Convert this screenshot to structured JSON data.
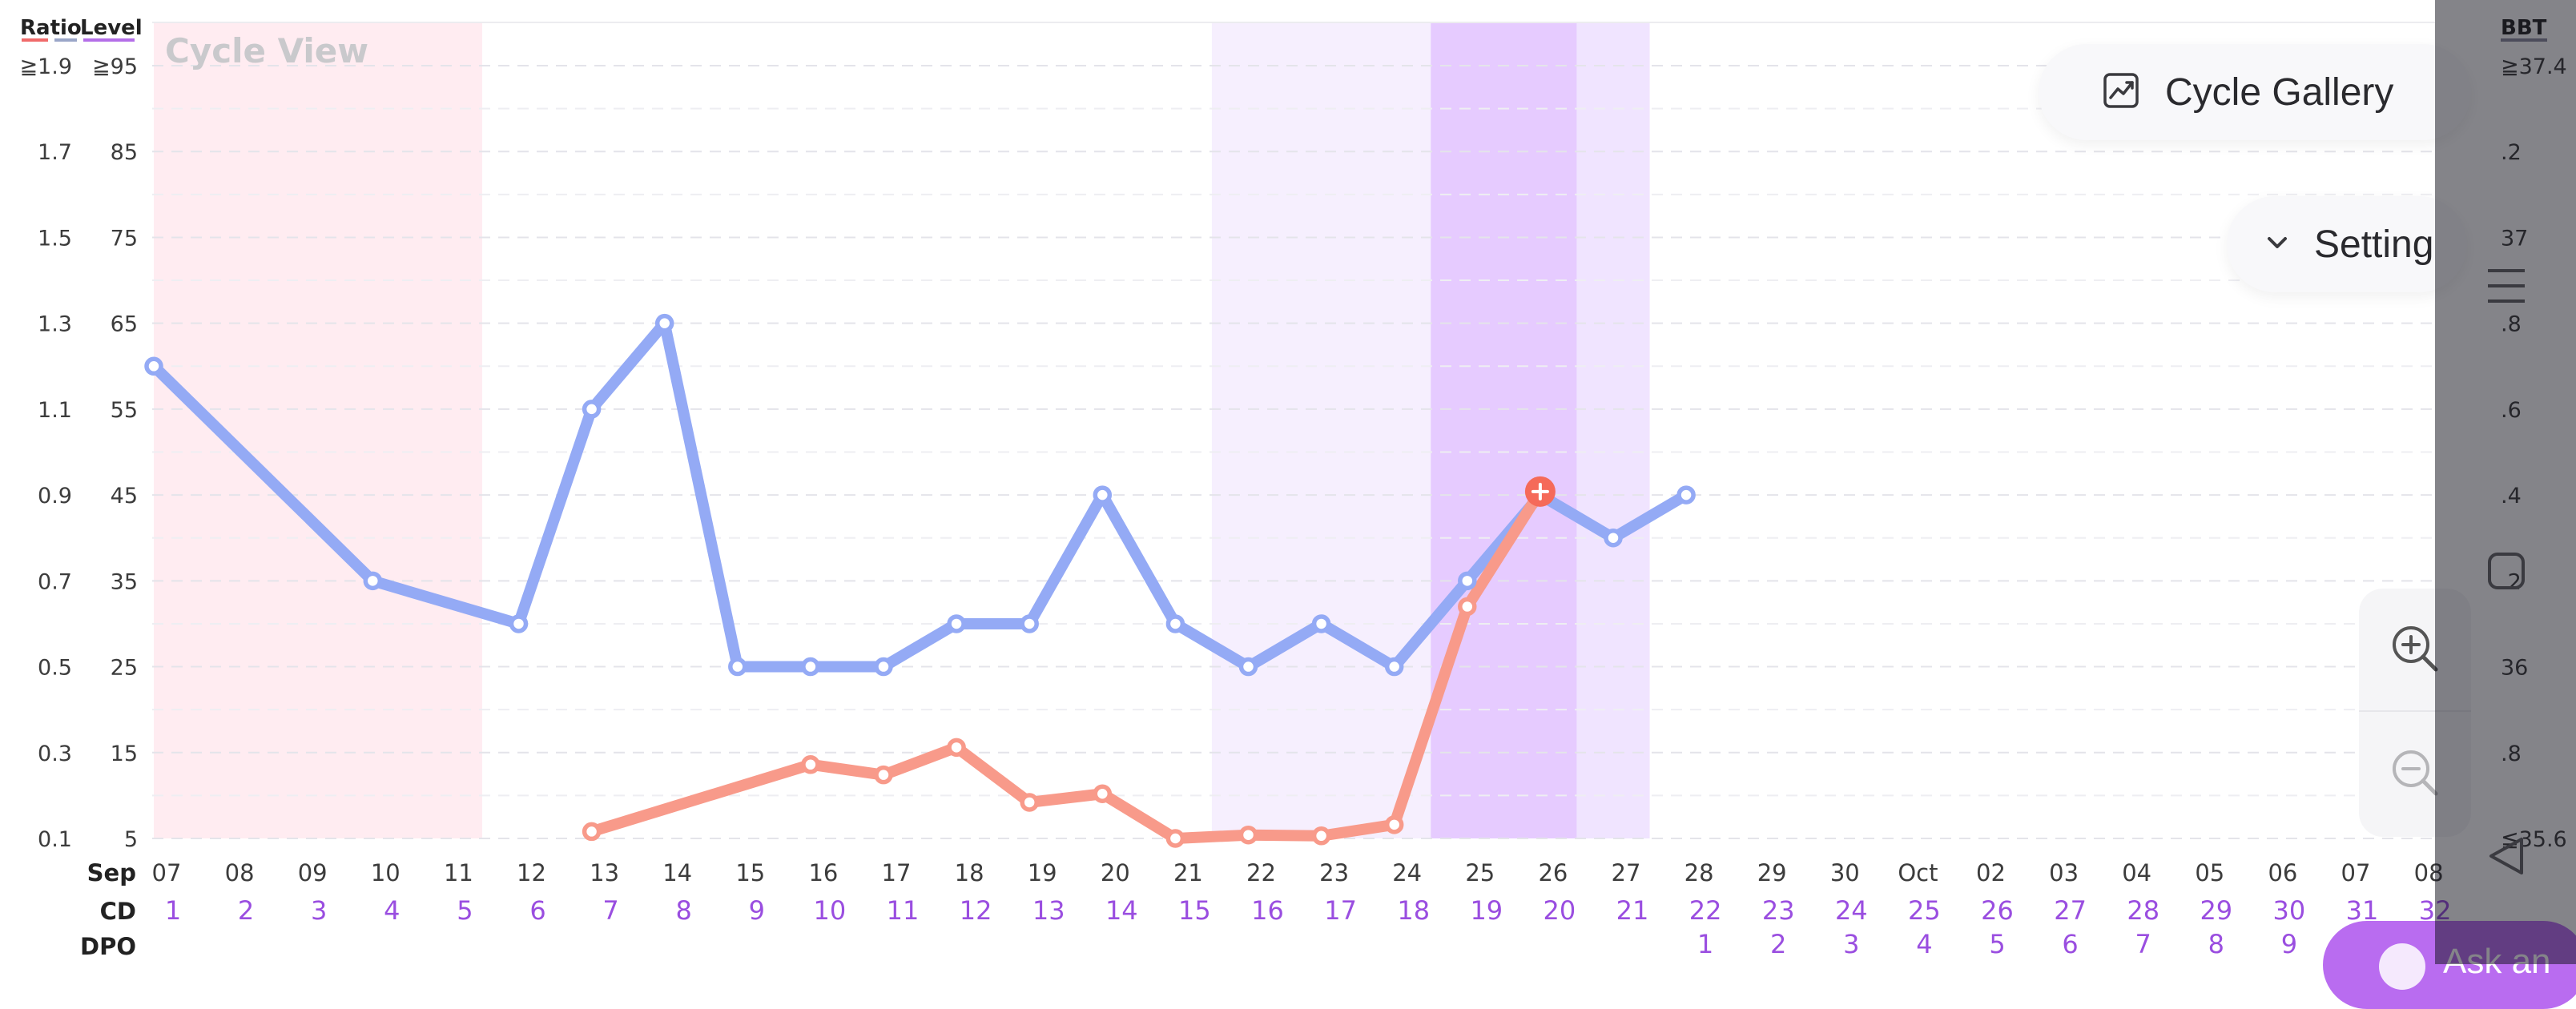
{
  "chart_data": {
    "type": "line",
    "title": "Cycle View",
    "left_axis_headers": [
      "Ratio",
      "Level"
    ],
    "right_axis_header": "BBT",
    "ratio_ticks": [
      "≧1.9",
      "1.7",
      "1.5",
      "1.3",
      "1.1",
      "0.9",
      "0.7",
      "0.5",
      "0.3",
      "0.1"
    ],
    "level_ticks": [
      "≧95",
      "85",
      "75",
      "65",
      "55",
      "45",
      "35",
      "25",
      "15",
      "5"
    ],
    "bbt_ticks": [
      "≧37.4",
      ".2",
      "37",
      ".8",
      ".6",
      ".4",
      ".2",
      "36",
      ".8",
      "≦35.6"
    ],
    "level_range": [
      5,
      95
    ],
    "row_labels": {
      "date": "Sep",
      "cd": "CD",
      "dpo": "DPO"
    },
    "dates": [
      "07",
      "08",
      "09",
      "10",
      "11",
      "12",
      "13",
      "14",
      "15",
      "16",
      "17",
      "18",
      "19",
      "20",
      "21",
      "22",
      "23",
      "24",
      "25",
      "26",
      "27",
      "28",
      "29",
      "30",
      "Oct",
      "02",
      "03",
      "04",
      "05",
      "06",
      "07",
      "08"
    ],
    "cd": [
      "1",
      "2",
      "3",
      "4",
      "5",
      "6",
      "7",
      "8",
      "9",
      "10",
      "11",
      "12",
      "13",
      "14",
      "15",
      "16",
      "17",
      "18",
      "19",
      "20",
      "21",
      "22",
      "23",
      "24",
      "25",
      "26",
      "27",
      "28",
      "29",
      "30",
      "31",
      "32"
    ],
    "dpo": [
      "",
      "",
      "",
      "",
      "",
      "",
      "",
      "",
      "",
      "",
      "",
      "",
      "",
      "",
      "",
      "",
      "",
      "",
      "",
      "",
      "",
      "1",
      "2",
      "3",
      "4",
      "5",
      "6",
      "7",
      "8",
      "9",
      "",
      ""
    ],
    "series": [
      {
        "key": "lh",
        "color": "#94aaf5",
        "points": [
          [
            0,
            60
          ],
          [
            3,
            35
          ],
          [
            5,
            30
          ],
          [
            6,
            55
          ],
          [
            7,
            65
          ],
          [
            8,
            25
          ],
          [
            9,
            25
          ],
          [
            10,
            25
          ],
          [
            11,
            30
          ],
          [
            12,
            30
          ],
          [
            13,
            45
          ],
          [
            14,
            30
          ],
          [
            15,
            25
          ],
          [
            16,
            30
          ],
          [
            17,
            25
          ],
          [
            18,
            35
          ],
          [
            19,
            45
          ],
          [
            20,
            40
          ],
          [
            21,
            45
          ]
        ]
      },
      {
        "key": "pdg",
        "color": "#f89a8a",
        "points": [
          [
            6,
            5.8
          ],
          [
            9,
            13.6
          ],
          [
            10,
            12.4
          ],
          [
            11,
            15.6
          ],
          [
            12,
            9.2
          ],
          [
            13,
            10.2
          ],
          [
            14,
            5
          ],
          [
            15,
            5.4
          ],
          [
            16,
            5.3
          ],
          [
            17,
            6.6
          ],
          [
            18,
            32
          ],
          [
            19,
            45.4
          ]
        ]
      }
    ],
    "peak": {
      "series": "pdg",
      "index": 19,
      "color": "#f56a59"
    },
    "bands": [
      {
        "kind": "period",
        "from": 0,
        "to": 4.5,
        "color": "#ffecf1"
      },
      {
        "kind": "fertile",
        "from": 14.5,
        "to": 17.5,
        "color": "#f6effe"
      },
      {
        "kind": "peak",
        "from": 17.5,
        "to": 19.5,
        "color": "#e6cbff"
      },
      {
        "kind": "post-peak",
        "from": 19.5,
        "to": 20.5,
        "color": "#f0e4ff"
      }
    ],
    "grid": true
  },
  "controls": {
    "gallery": {
      "label": "Cycle Gallery",
      "icon": "chart-image-icon"
    },
    "setting": {
      "label": "Setting",
      "icon": "chevron-down-icon"
    },
    "zoom_in_icon": "zoom-in-icon",
    "zoom_out_icon": "zoom-out-icon",
    "ask": {
      "label": "Ask an"
    }
  },
  "nav": {
    "menu_icon": "menu-icon",
    "home_icon": "home-square-icon",
    "back_icon": "back-triangle-icon"
  }
}
